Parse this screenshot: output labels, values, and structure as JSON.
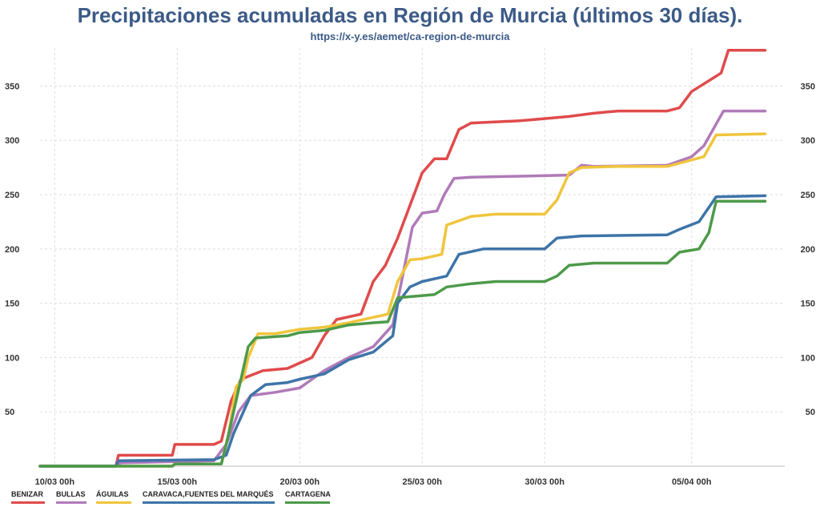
{
  "chart_data": {
    "type": "line",
    "title": "Precipitaciones acumuladas en Región de Murcia (últimos 30 días).",
    "subtitle": "https://x-y.es/aemet/ca-region-de-murcia",
    "xlabel": "",
    "ylabel": "",
    "x_ticks": [
      {
        "x": 0,
        "label": "10/03 00h"
      },
      {
        "x": 5,
        "label": "15/03 00h"
      },
      {
        "x": 10,
        "label": "20/03 00h"
      },
      {
        "x": 15,
        "label": "25/03 00h"
      },
      {
        "x": 20,
        "label": "30/03 00h"
      },
      {
        "x": 26,
        "label": "05/04 00h"
      }
    ],
    "y_ticks": [
      50,
      100,
      150,
      200,
      250,
      300,
      350
    ],
    "xlim": [
      -0.6,
      29.8
    ],
    "ylim": [
      0,
      385
    ],
    "grid": true,
    "legend_position": "bottom",
    "series": [
      {
        "name": "BENIZAR",
        "color": "#e04b4b",
        "points": [
          [
            -0.6,
            0
          ],
          [
            2.5,
            0
          ],
          [
            2.6,
            10
          ],
          [
            4.8,
            10
          ],
          [
            4.9,
            20
          ],
          [
            6.5,
            20
          ],
          [
            6.8,
            23
          ],
          [
            7.2,
            60
          ],
          [
            7.6,
            80
          ],
          [
            8.5,
            88
          ],
          [
            9.5,
            90
          ],
          [
            10.5,
            100
          ],
          [
            11.0,
            120
          ],
          [
            11.5,
            135
          ],
          [
            12.5,
            140
          ],
          [
            13.0,
            170
          ],
          [
            13.5,
            185
          ],
          [
            14.0,
            210
          ],
          [
            14.5,
            240
          ],
          [
            15.0,
            270
          ],
          [
            15.5,
            283
          ],
          [
            16.0,
            283
          ],
          [
            16.5,
            310
          ],
          [
            17.0,
            316
          ],
          [
            19.0,
            318
          ],
          [
            20.0,
            320
          ],
          [
            21.0,
            322
          ],
          [
            22.0,
            325
          ],
          [
            23.0,
            327
          ],
          [
            24.0,
            327
          ],
          [
            25.0,
            327
          ],
          [
            25.5,
            330
          ],
          [
            26.0,
            345
          ],
          [
            26.5,
            352
          ],
          [
            27.2,
            362
          ],
          [
            27.5,
            383
          ],
          [
            29.0,
            383
          ]
        ]
      },
      {
        "name": "BULLAS",
        "color": "#b07ab8",
        "points": [
          [
            -0.6,
            0
          ],
          [
            2.5,
            0
          ],
          [
            2.7,
            3
          ],
          [
            6.5,
            5
          ],
          [
            7.0,
            20
          ],
          [
            7.5,
            50
          ],
          [
            8.0,
            65
          ],
          [
            9.0,
            68
          ],
          [
            10.0,
            72
          ],
          [
            10.5,
            80
          ],
          [
            11.0,
            88
          ],
          [
            12.0,
            100
          ],
          [
            13.0,
            110
          ],
          [
            13.8,
            130
          ],
          [
            14.2,
            175
          ],
          [
            14.6,
            220
          ],
          [
            15.0,
            233
          ],
          [
            15.6,
            235
          ],
          [
            15.9,
            250
          ],
          [
            16.3,
            265
          ],
          [
            17.0,
            266
          ],
          [
            19.0,
            267
          ],
          [
            21.0,
            268
          ],
          [
            21.5,
            277
          ],
          [
            22.0,
            276
          ],
          [
            25.0,
            277
          ],
          [
            26.0,
            285
          ],
          [
            26.5,
            295
          ],
          [
            27.0,
            315
          ],
          [
            27.3,
            327
          ],
          [
            29.0,
            327
          ]
        ]
      },
      {
        "name": "ÁGUILAS",
        "color": "#f0c53d",
        "points": [
          [
            -0.6,
            0
          ],
          [
            4.8,
            0
          ],
          [
            4.9,
            2
          ],
          [
            6.8,
            2
          ],
          [
            7.1,
            30
          ],
          [
            7.4,
            73
          ],
          [
            7.7,
            80
          ],
          [
            7.9,
            100
          ],
          [
            8.3,
            122
          ],
          [
            9.0,
            122
          ],
          [
            10.0,
            126
          ],
          [
            11.0,
            128
          ],
          [
            12.0,
            132
          ],
          [
            13.0,
            137
          ],
          [
            13.6,
            140
          ],
          [
            14.0,
            170
          ],
          [
            14.5,
            190
          ],
          [
            15.0,
            191
          ],
          [
            15.8,
            195
          ],
          [
            16.0,
            222
          ],
          [
            16.5,
            226
          ],
          [
            17.0,
            230
          ],
          [
            18.0,
            232
          ],
          [
            20.0,
            232
          ],
          [
            20.5,
            245
          ],
          [
            21.0,
            270
          ],
          [
            21.5,
            275
          ],
          [
            23.0,
            276
          ],
          [
            25.0,
            276
          ],
          [
            26.0,
            282
          ],
          [
            26.5,
            285
          ],
          [
            27.0,
            305
          ],
          [
            29.0,
            306
          ]
        ]
      },
      {
        "name": "CARAVACA,FUENTES DEL MARQUÉS",
        "color": "#3e74a8",
        "points": [
          [
            -0.6,
            0
          ],
          [
            2.5,
            0
          ],
          [
            2.6,
            5
          ],
          [
            6.5,
            6
          ],
          [
            7.0,
            10
          ],
          [
            7.3,
            30
          ],
          [
            7.6,
            45
          ],
          [
            8.0,
            65
          ],
          [
            8.6,
            75
          ],
          [
            9.5,
            77
          ],
          [
            10.0,
            80
          ],
          [
            11.0,
            85
          ],
          [
            12.0,
            98
          ],
          [
            13.0,
            105
          ],
          [
            13.8,
            120
          ],
          [
            14.0,
            150
          ],
          [
            14.5,
            165
          ],
          [
            15.0,
            170
          ],
          [
            16.0,
            175
          ],
          [
            16.5,
            195
          ],
          [
            17.5,
            200
          ],
          [
            20.0,
            200
          ],
          [
            20.5,
            210
          ],
          [
            21.5,
            212
          ],
          [
            25.0,
            213
          ],
          [
            25.5,
            218
          ],
          [
            26.3,
            225
          ],
          [
            27.0,
            248
          ],
          [
            29.0,
            249
          ]
        ]
      },
      {
        "name": "CARTAGENA",
        "color": "#4d9a4a",
        "points": [
          [
            -0.6,
            0
          ],
          [
            4.8,
            0
          ],
          [
            4.9,
            2
          ],
          [
            6.8,
            2
          ],
          [
            7.0,
            20
          ],
          [
            7.3,
            50
          ],
          [
            7.6,
            80
          ],
          [
            7.9,
            110
          ],
          [
            8.2,
            118
          ],
          [
            9.5,
            120
          ],
          [
            10.0,
            123
          ],
          [
            11.0,
            125
          ],
          [
            12.0,
            130
          ],
          [
            13.0,
            132
          ],
          [
            13.6,
            133
          ],
          [
            14.0,
            155
          ],
          [
            15.0,
            157
          ],
          [
            15.5,
            158
          ],
          [
            16.0,
            165
          ],
          [
            17.0,
            168
          ],
          [
            18.0,
            170
          ],
          [
            20.0,
            170
          ],
          [
            20.5,
            175
          ],
          [
            21.0,
            185
          ],
          [
            22.0,
            187
          ],
          [
            25.0,
            187
          ],
          [
            25.5,
            197
          ],
          [
            26.3,
            200
          ],
          [
            26.7,
            215
          ],
          [
            27.0,
            244
          ],
          [
            29.0,
            244
          ]
        ]
      }
    ]
  }
}
